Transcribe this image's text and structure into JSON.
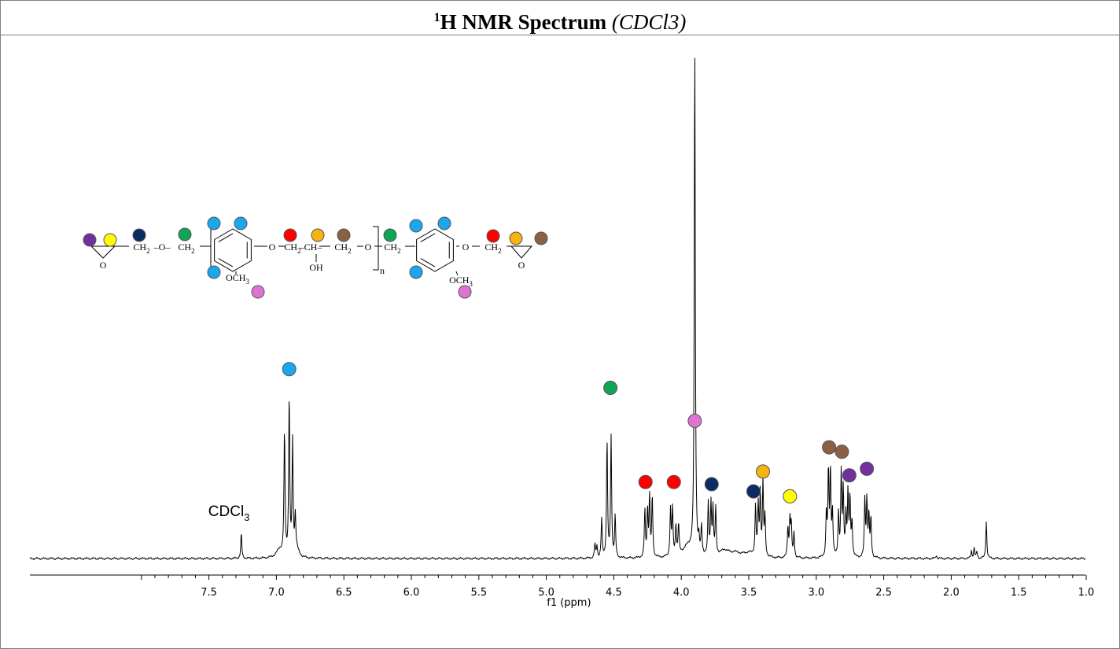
{
  "header": {
    "title_sup": "1",
    "title_main": "H NMR Spectrum",
    "title_sub": "(CDCl3)"
  },
  "colors": {
    "light-blue": "#1ba7ee",
    "green": "#10a554",
    "pink": "#df73d4",
    "red": "#ff0000",
    "navy": "#0b2b63",
    "orange": "#f4b30e",
    "yellow": "#ffff00",
    "brown": "#8c6044",
    "purple": "#7030a0"
  },
  "chart_data": {
    "type": "line",
    "xlabel": "f1 (ppm)",
    "xlim": [
      8.0,
      1.0
    ],
    "x_reversed": true,
    "x_ticks": [
      "7.5",
      "7.0",
      "6.5",
      "6.0",
      "5.5",
      "5.0",
      "4.5",
      "4.0",
      "3.5",
      "3.0",
      "2.5",
      "2.0",
      "1.5",
      "1.0"
    ],
    "solvent_label": {
      "text": "CDCl",
      "sub": "3",
      "ppm": 7.26
    },
    "peaks": [
      {
        "ppm": 7.26,
        "h": 0.045
      },
      {
        "ppm": 6.975,
        "h": 0.015,
        "w": 0.03
      },
      {
        "ppm": 6.94,
        "h": 0.225
      },
      {
        "ppm": 6.905,
        "h": 0.29
      },
      {
        "ppm": 6.88,
        "h": 0.205
      },
      {
        "ppm": 6.86,
        "h": 0.065
      },
      {
        "ppm": 6.85,
        "h": 0.015,
        "w": 0.02
      },
      {
        "ppm": 4.64,
        "h": 0.025
      },
      {
        "ppm": 4.625,
        "h": 0.022
      },
      {
        "ppm": 4.59,
        "h": 0.07
      },
      {
        "ppm": 4.55,
        "h": 0.215
      },
      {
        "ppm": 4.52,
        "h": 0.22
      },
      {
        "ppm": 4.49,
        "h": 0.075
      },
      {
        "ppm": 4.27,
        "h": 0.085
      },
      {
        "ppm": 4.25,
        "h": 0.085
      },
      {
        "ppm": 4.235,
        "h": 0.11
      },
      {
        "ppm": 4.215,
        "h": 0.11
      },
      {
        "ppm": 4.08,
        "h": 0.085
      },
      {
        "ppm": 4.065,
        "h": 0.085
      },
      {
        "ppm": 4.04,
        "h": 0.055
      },
      {
        "ppm": 4.02,
        "h": 0.055
      },
      {
        "ppm": 3.95,
        "h": 0.02,
        "w": 0.05
      },
      {
        "ppm": 3.9,
        "h": 0.925
      },
      {
        "ppm": 3.87,
        "h": 0.025
      },
      {
        "ppm": 3.85,
        "h": 0.05
      },
      {
        "ppm": 3.8,
        "h": 0.095
      },
      {
        "ppm": 3.78,
        "h": 0.095
      },
      {
        "ppm": 3.765,
        "h": 0.085
      },
      {
        "ppm": 3.745,
        "h": 0.085
      },
      {
        "ppm": 3.68,
        "h": 0.012,
        "w": 0.04
      },
      {
        "ppm": 3.6,
        "h": 0.008,
        "w": 0.05
      },
      {
        "ppm": 3.5,
        "h": 0.008,
        "w": 0.05
      },
      {
        "ppm": 3.45,
        "h": 0.09
      },
      {
        "ppm": 3.43,
        "h": 0.09
      },
      {
        "ppm": 3.415,
        "h": 0.115
      },
      {
        "ppm": 3.395,
        "h": 0.135
      },
      {
        "ppm": 3.38,
        "h": 0.07
      },
      {
        "ppm": 3.21,
        "h": 0.055
      },
      {
        "ppm": 3.195,
        "h": 0.07
      },
      {
        "ppm": 3.185,
        "h": 0.055
      },
      {
        "ppm": 3.165,
        "h": 0.045
      },
      {
        "ppm": 2.925,
        "h": 0.08
      },
      {
        "ppm": 2.91,
        "h": 0.155
      },
      {
        "ppm": 2.895,
        "h": 0.155
      },
      {
        "ppm": 2.88,
        "h": 0.08
      },
      {
        "ppm": 2.835,
        "h": 0.08
      },
      {
        "ppm": 2.815,
        "h": 0.15
      },
      {
        "ppm": 2.8,
        "h": 0.12
      },
      {
        "ppm": 2.78,
        "h": 0.075
      },
      {
        "ppm": 2.765,
        "h": 0.115
      },
      {
        "ppm": 2.75,
        "h": 0.105
      },
      {
        "ppm": 2.735,
        "h": 0.065
      },
      {
        "ppm": 2.64,
        "h": 0.105
      },
      {
        "ppm": 2.625,
        "h": 0.105
      },
      {
        "ppm": 2.61,
        "h": 0.075
      },
      {
        "ppm": 2.595,
        "h": 0.07
      },
      {
        "ppm": 2.11,
        "h": 0.006
      },
      {
        "ppm": 1.85,
        "h": 0.014
      },
      {
        "ppm": 1.83,
        "h": 0.019
      },
      {
        "ppm": 1.81,
        "h": 0.012
      },
      {
        "ppm": 1.74,
        "h": 0.068
      }
    ],
    "assignments": [
      {
        "color": "light-blue",
        "ppm": 6.905,
        "intensity": 0.344
      },
      {
        "color": "green",
        "ppm": 4.525,
        "intensity": 0.31
      },
      {
        "color": "pink",
        "ppm": 3.9,
        "intensity": 0.25
      },
      {
        "color": "red",
        "ppm": 4.265,
        "intensity": 0.139
      },
      {
        "color": "red",
        "ppm": 4.055,
        "intensity": 0.139
      },
      {
        "color": "navy",
        "ppm": 3.775,
        "intensity": 0.135
      },
      {
        "color": "navy",
        "ppm": 3.465,
        "intensity": 0.122
      },
      {
        "color": "orange",
        "ppm": 3.395,
        "intensity": 0.158
      },
      {
        "color": "yellow",
        "ppm": 3.195,
        "intensity": 0.113
      },
      {
        "color": "brown",
        "ppm": 2.905,
        "intensity": 0.202
      },
      {
        "color": "brown",
        "ppm": 2.81,
        "intensity": 0.194
      },
      {
        "color": "purple",
        "ppm": 2.755,
        "intensity": 0.151
      },
      {
        "color": "purple",
        "ppm": 2.625,
        "intensity": 0.163
      }
    ]
  },
  "structure": {
    "labels": {
      "ch2": "CH",
      "ch": "CH",
      "o": "O",
      "oh": "OH",
      "och": "OCH",
      "sub2": "2",
      "sub3": "3",
      "n": "n",
      "dash": "–"
    },
    "markers": [
      {
        "color": "purple",
        "part": "epoxide-left-ch2"
      },
      {
        "color": "yellow",
        "part": "epoxide-left-ch"
      },
      {
        "color": "navy",
        "part": "glycidyl-left-ch2"
      },
      {
        "color": "green",
        "part": "benzyl-ch2-1"
      },
      {
        "color": "light-blue",
        "part": "ring1-h-top-left"
      },
      {
        "color": "light-blue",
        "part": "ring1-h-top-right"
      },
      {
        "color": "light-blue",
        "part": "ring1-h-bottom"
      },
      {
        "color": "pink",
        "part": "methoxy-1"
      },
      {
        "color": "red",
        "part": "linker-och2"
      },
      {
        "color": "orange",
        "part": "linker-choh"
      },
      {
        "color": "brown",
        "part": "linker-ch2o"
      },
      {
        "color": "green",
        "part": "benzyl-ch2-2"
      },
      {
        "color": "light-blue",
        "part": "ring2-h-top-left"
      },
      {
        "color": "light-blue",
        "part": "ring2-h-top-right"
      },
      {
        "color": "light-blue",
        "part": "ring2-h-bottom"
      },
      {
        "color": "pink",
        "part": "methoxy-2"
      },
      {
        "color": "red",
        "part": "glycidyl-right-ch2"
      },
      {
        "color": "orange",
        "part": "epoxide-right-ch"
      },
      {
        "color": "brown",
        "part": "epoxide-right-ch2"
      }
    ]
  }
}
